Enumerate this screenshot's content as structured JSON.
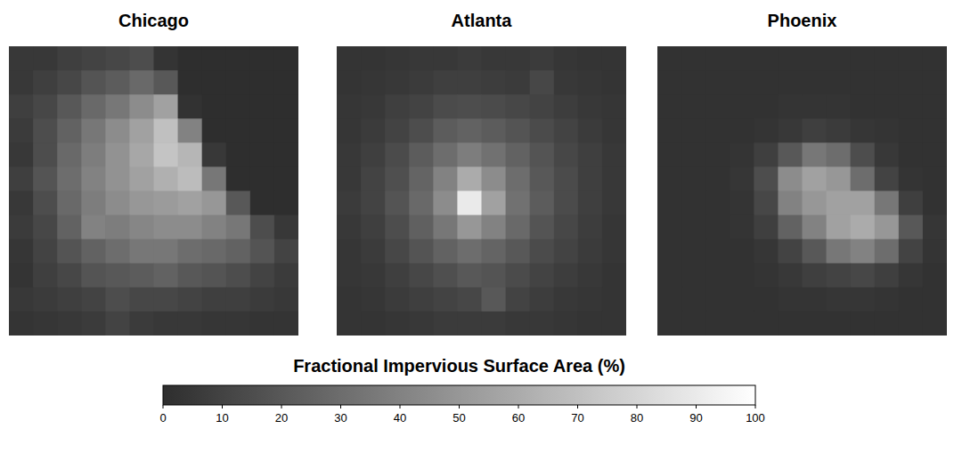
{
  "chart_data": [
    {
      "type": "heatmap",
      "title": "Chicago",
      "tick_labels": false,
      "cells": [
        [
          5,
          5,
          8,
          10,
          12,
          15,
          3,
          0,
          0,
          0,
          0,
          0
        ],
        [
          5,
          8,
          12,
          18,
          22,
          28,
          20,
          0,
          0,
          0,
          0,
          0
        ],
        [
          8,
          12,
          20,
          28,
          35,
          45,
          55,
          2,
          0,
          0,
          0,
          0
        ],
        [
          6,
          15,
          25,
          35,
          45,
          55,
          70,
          40,
          0,
          0,
          0,
          0
        ],
        [
          5,
          15,
          28,
          38,
          48,
          58,
          72,
          65,
          5,
          0,
          0,
          0
        ],
        [
          8,
          18,
          30,
          40,
          48,
          55,
          62,
          68,
          35,
          0,
          0,
          0
        ],
        [
          5,
          15,
          28,
          38,
          45,
          50,
          52,
          55,
          50,
          20,
          0,
          0
        ],
        [
          6,
          12,
          25,
          40,
          38,
          42,
          45,
          45,
          40,
          35,
          15,
          5
        ],
        [
          4,
          10,
          18,
          25,
          30,
          35,
          35,
          30,
          28,
          25,
          18,
          10
        ],
        [
          3,
          8,
          12,
          18,
          20,
          22,
          25,
          20,
          18,
          15,
          10,
          6
        ],
        [
          5,
          6,
          8,
          10,
          15,
          12,
          12,
          10,
          8,
          8,
          6,
          5
        ],
        [
          3,
          4,
          5,
          6,
          10,
          6,
          5,
          5,
          4,
          4,
          3,
          3
        ]
      ]
    },
    {
      "type": "heatmap",
      "title": "Atlanta",
      "tick_labels": false,
      "cells": [
        [
          3,
          3,
          4,
          5,
          5,
          6,
          5,
          5,
          6,
          4,
          3,
          3
        ],
        [
          3,
          4,
          5,
          6,
          8,
          8,
          7,
          6,
          12,
          5,
          4,
          3
        ],
        [
          4,
          5,
          8,
          10,
          14,
          15,
          14,
          12,
          10,
          7,
          5,
          4
        ],
        [
          4,
          6,
          10,
          15,
          22,
          25,
          22,
          18,
          14,
          10,
          6,
          4
        ],
        [
          5,
          8,
          14,
          22,
          30,
          38,
          32,
          25,
          18,
          12,
          8,
          5
        ],
        [
          5,
          10,
          16,
          26,
          40,
          60,
          45,
          30,
          20,
          14,
          8,
          5
        ],
        [
          6,
          10,
          18,
          28,
          45,
          90,
          55,
          32,
          22,
          14,
          8,
          5
        ],
        [
          5,
          8,
          15,
          24,
          35,
          50,
          40,
          28,
          18,
          12,
          7,
          4
        ],
        [
          4,
          6,
          12,
          18,
          25,
          30,
          26,
          20,
          14,
          10,
          6,
          4
        ],
        [
          4,
          5,
          8,
          12,
          16,
          20,
          18,
          14,
          10,
          7,
          5,
          3
        ],
        [
          3,
          4,
          6,
          8,
          10,
          12,
          20,
          10,
          7,
          5,
          4,
          3
        ],
        [
          3,
          3,
          4,
          5,
          6,
          6,
          6,
          5,
          5,
          4,
          3,
          3
        ]
      ]
    },
    {
      "type": "heatmap",
      "title": "Phoenix",
      "tick_labels": false,
      "cells": [
        [
          2,
          2,
          2,
          2,
          2,
          2,
          2,
          2,
          2,
          2,
          2,
          2
        ],
        [
          2,
          2,
          2,
          2,
          2,
          2,
          2,
          2,
          2,
          2,
          2,
          2
        ],
        [
          2,
          2,
          2,
          2,
          2,
          3,
          3,
          3,
          2,
          2,
          2,
          2
        ],
        [
          2,
          2,
          2,
          2,
          3,
          5,
          8,
          6,
          4,
          3,
          2,
          2
        ],
        [
          2,
          2,
          2,
          3,
          8,
          20,
          35,
          30,
          15,
          5,
          2,
          2
        ],
        [
          2,
          2,
          2,
          4,
          15,
          45,
          55,
          50,
          30,
          10,
          3,
          2
        ],
        [
          2,
          2,
          2,
          3,
          12,
          40,
          50,
          55,
          55,
          35,
          8,
          2
        ],
        [
          2,
          2,
          2,
          3,
          8,
          25,
          40,
          55,
          60,
          50,
          20,
          4
        ],
        [
          2,
          2,
          2,
          2,
          4,
          10,
          20,
          35,
          40,
          30,
          10,
          3
        ],
        [
          2,
          2,
          2,
          2,
          3,
          5,
          8,
          10,
          12,
          8,
          4,
          2
        ],
        [
          2,
          2,
          2,
          2,
          2,
          3,
          3,
          4,
          4,
          3,
          2,
          2
        ],
        [
          2,
          2,
          2,
          2,
          2,
          2,
          2,
          2,
          2,
          2,
          2,
          2
        ]
      ]
    }
  ],
  "colorbar": {
    "label": "Fractional Impervious Surface Area (%)",
    "range": [
      0,
      100
    ],
    "ticks": [
      0,
      10,
      20,
      30,
      40,
      50,
      60,
      70,
      80,
      90,
      100
    ]
  }
}
